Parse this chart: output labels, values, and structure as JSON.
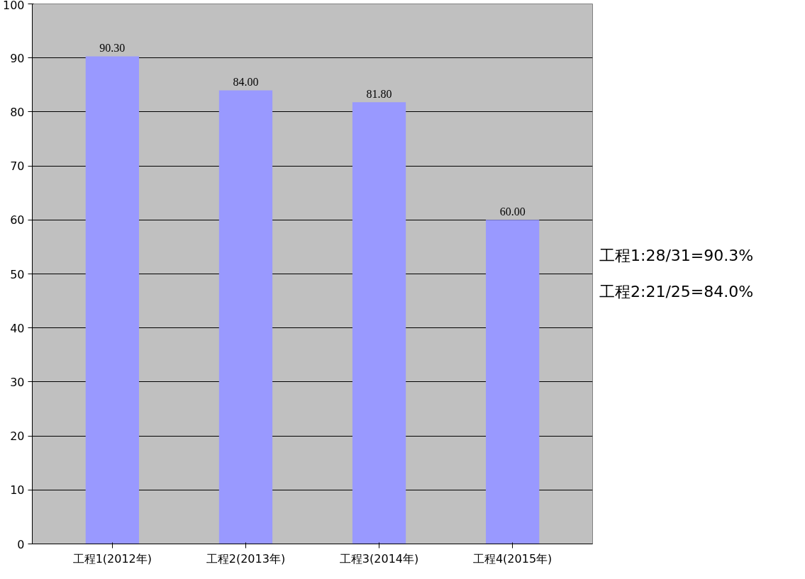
{
  "chart_data": {
    "type": "bar",
    "categories": [
      "工程1(2012年)",
      "工程2(2013年)",
      "工程3(2014年)",
      "工程4(2015年)"
    ],
    "values": [
      90.3,
      84.0,
      81.8,
      60.0
    ],
    "value_labels": [
      "90.30",
      "84.00",
      "81.80",
      "60.00"
    ],
    "color": "#9999ff",
    "ylim": [
      0,
      100
    ],
    "yticks": [
      0,
      10,
      20,
      30,
      40,
      50,
      60,
      70,
      80,
      90,
      100
    ],
    "grid": "y",
    "annotations": [
      "工程1:28/31=90.3%",
      "工程2:21/25=84.0%"
    ]
  }
}
